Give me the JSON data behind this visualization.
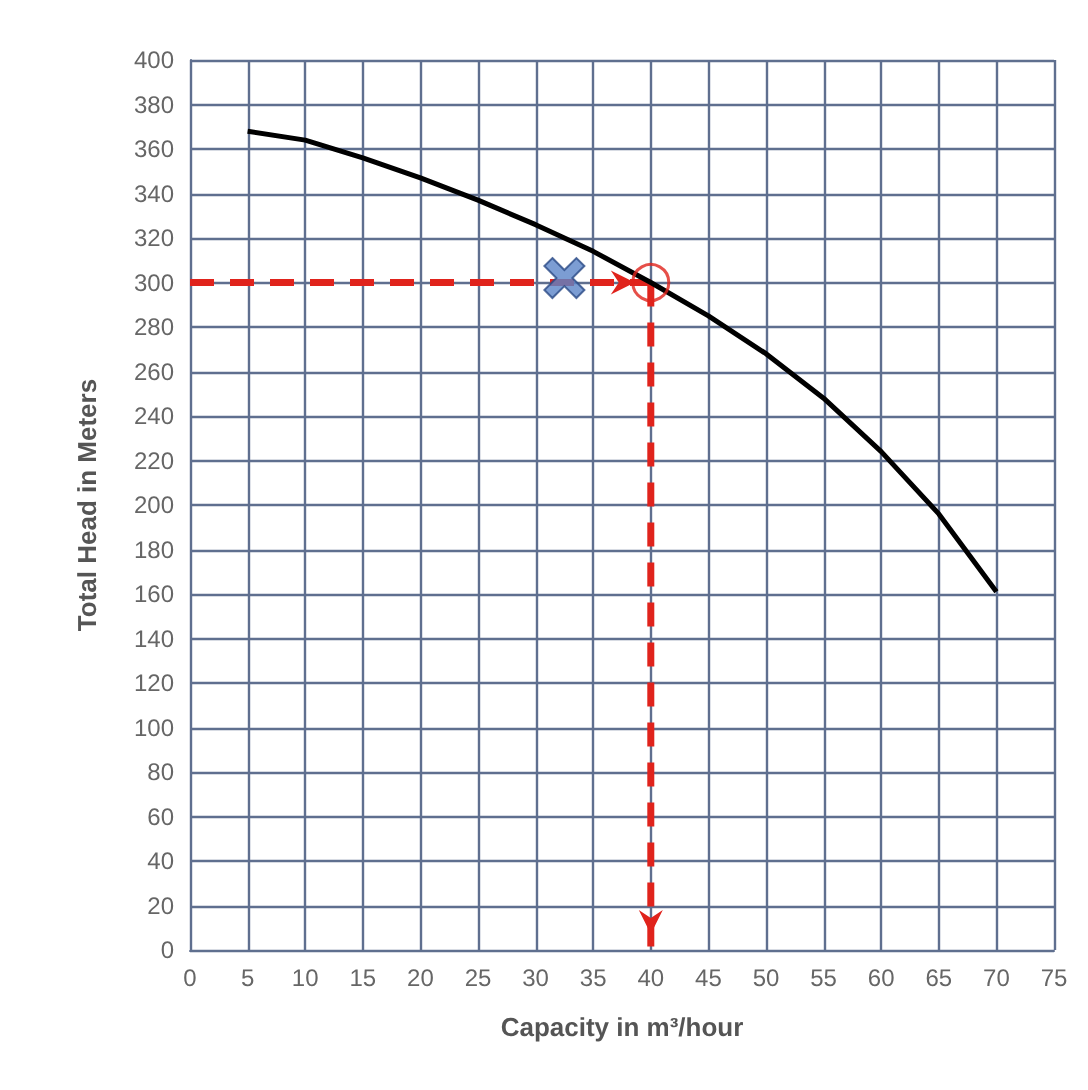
{
  "chart_data": {
    "type": "line",
    "xlabel": "Capacity in m³/hour",
    "ylabel": "Total Head in Meters",
    "xlim": [
      0,
      75
    ],
    "xticks": [
      0,
      5,
      10,
      15,
      20,
      25,
      30,
      35,
      40,
      45,
      50,
      55,
      60,
      65,
      70,
      75
    ],
    "ylim": [
      0,
      400
    ],
    "yticks": [
      0,
      20,
      40,
      60,
      80,
      100,
      120,
      140,
      160,
      180,
      200,
      220,
      240,
      260,
      280,
      300,
      320,
      340,
      360,
      380,
      400
    ],
    "grid": true,
    "series": [
      {
        "color": "#000000",
        "marker": "none",
        "line_style": "solid",
        "x": [
          5,
          10,
          15,
          20,
          25,
          30,
          35,
          40,
          45,
          50,
          55,
          60,
          65,
          70
        ],
        "values": [
          368,
          364,
          356,
          347,
          337,
          326,
          314,
          300,
          285,
          268,
          248,
          224,
          196,
          161
        ]
      },
      {
        "type": "line",
        "color": "#e0231c",
        "marker": "none",
        "line_style": "dashed",
        "x": [
          0,
          40
        ],
        "values": [
          300,
          300
        ]
      },
      {
        "type": "line",
        "color": "#e0231c",
        "marker": "none",
        "line_style": "dashed",
        "x": [
          40,
          40
        ],
        "values": [
          300,
          0
        ]
      },
      {
        "type": "scatter",
        "color": "#e0231c",
        "marker": "circle",
        "x": [
          40
        ],
        "values": [
          300
        ]
      },
      {
        "type": "scatter",
        "color": "#5b85c8",
        "marker": "cross",
        "x": [
          32.5
        ],
        "values": [
          302
        ]
      }
    ]
  }
}
